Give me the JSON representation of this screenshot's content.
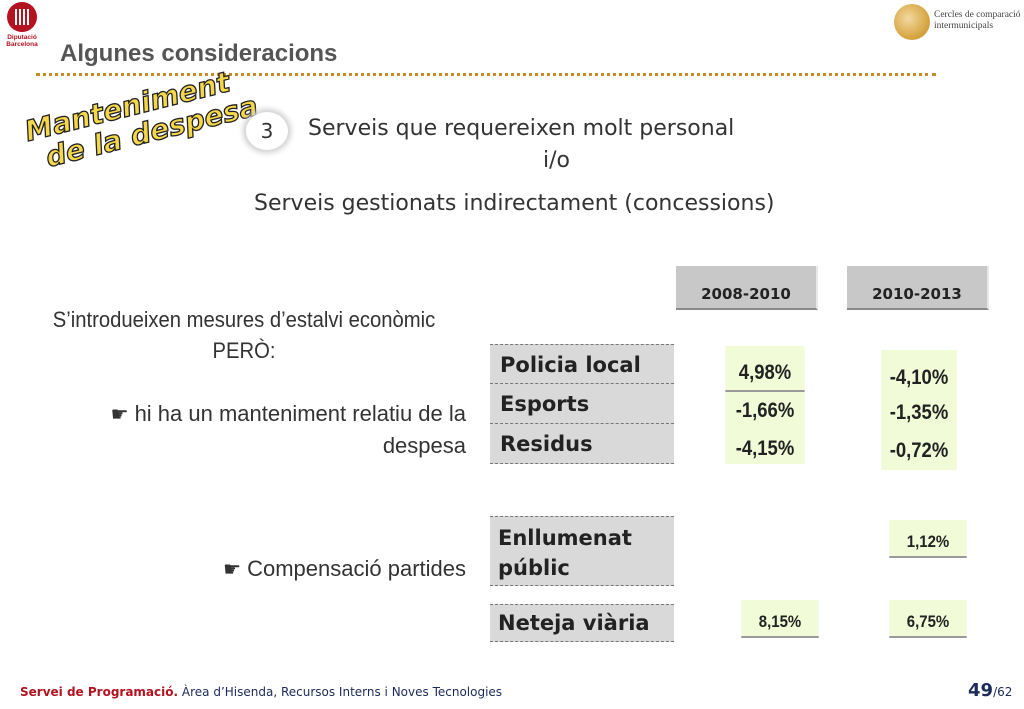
{
  "header": {
    "logo_text": [
      "Diputació",
      "Barcelona"
    ],
    "title": "Algunes consideracions",
    "partner_logo_text": [
      "Cercles de comparació",
      "intermunicipals"
    ]
  },
  "wordart": [
    "Manteniment",
    "de la despesa"
  ],
  "point": {
    "number": "3",
    "line1": "Serveis que requereixen molt personal",
    "connector": "i/o",
    "line2": "Serveis gestionats indirectament (concessions)"
  },
  "left_text": {
    "intro_line1": "S’introdueixen mesures d’estalvi econòmic",
    "intro_line2": "PERÒ:",
    "bullet1_line1": "hi ha un manteniment relatiu de la",
    "bullet1_line2": "despesa",
    "bullet2": "Compensació partides"
  },
  "periods": [
    "2008-2010",
    "2010-2013"
  ],
  "categories": [
    "Policia local",
    "Esports",
    "Residus"
  ],
  "values_2008_2010": [
    "4,98%",
    "-1,66%",
    "-4,15%"
  ],
  "values_2010_2013": [
    "-4,10%",
    "-1,35%",
    "-0,72%"
  ],
  "enllumenat": {
    "label_line1": "Enllumenat",
    "label_line2": "públic",
    "value_2010_2013": "1,12%"
  },
  "neteja": {
    "label": "Neteja viària",
    "value_2008_2010": "8,15%",
    "value_2010_2013": "6,75%"
  },
  "footer": {
    "org": "Servei de Programació.",
    "dept": "Àrea d’Hisenda, Recursos Interns i Noves Tecnologies",
    "page": "49",
    "total": "/62"
  },
  "colors": {
    "accent_red": "#b3121f",
    "dots": "#c98a2a",
    "value_box": "#f1fbd8",
    "header_cell": "#c8c8c8"
  }
}
